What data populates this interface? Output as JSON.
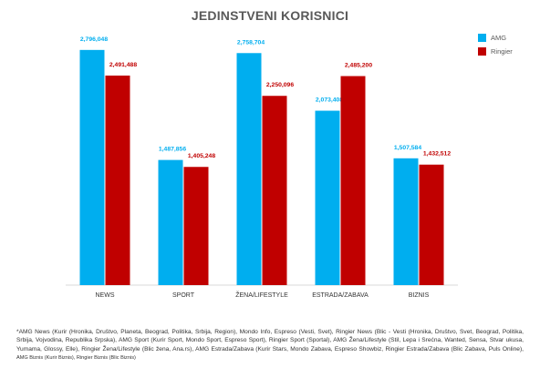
{
  "chart_data": {
    "type": "bar",
    "title": "JEDINSTVENI KORISNICI",
    "xlabel": "",
    "ylabel": "",
    "ylim": [
      0,
      3000000
    ],
    "grid": false,
    "legend_position": "top-right",
    "categories": [
      "NEWS",
      "SPORT",
      "ŽENA/LIFESTYLE",
      "ESTRADA/ZABAVA",
      "BIZNIS"
    ],
    "series": [
      {
        "name": "AMG",
        "color": "#00aeef",
        "values": [
          2796048,
          1487856,
          2758704,
          2073408,
          1507584
        ],
        "labels": [
          "2,796,048",
          "1,487,856",
          "2,758,704",
          "2,073,408",
          "1,507,584"
        ]
      },
      {
        "name": "Ringier",
        "color": "#c00000",
        "values": [
          2491488,
          1405248,
          2250096,
          2485200,
          1432512
        ],
        "labels": [
          "2,491,488",
          "1,405,248",
          "2,250,096",
          "2,485,200",
          "1,432,512"
        ]
      }
    ]
  },
  "footnote": {
    "main": "*AMG News (Kurir (Hronika, Društvo, Planeta, Beograd, Politika, Srbija, Region), Mondo Info, Espreso (Vesti, Svet), Ringier News (Blic - Vesti (Hronika, Društvo, Svet, Beograd, Politika, Srbija, Vojvodina, Republika Srpska), AMG Sport (Kurir Sport, Mondo Sport, Espreso Sport), Ringier Sport (Sportal), AMG Žena/Lifestyle (Stil, Lepa i Srećna, Wanted, Sensa, Stvar ukusa, Yumama, Glossy, Elle), Ringier Žena/Lifestyle (Blic žena, Ana.rs), AMG Estrada/Zabava (Kurir Stars, Mondo Zabava, Espreso Showbiz, Ringier Estrada/Zabava (Blic Zabava, Puls Online), ",
    "small": "AMG Biznis (Kurir Biznis), Ringier Biznis (Blic Biznis)"
  }
}
